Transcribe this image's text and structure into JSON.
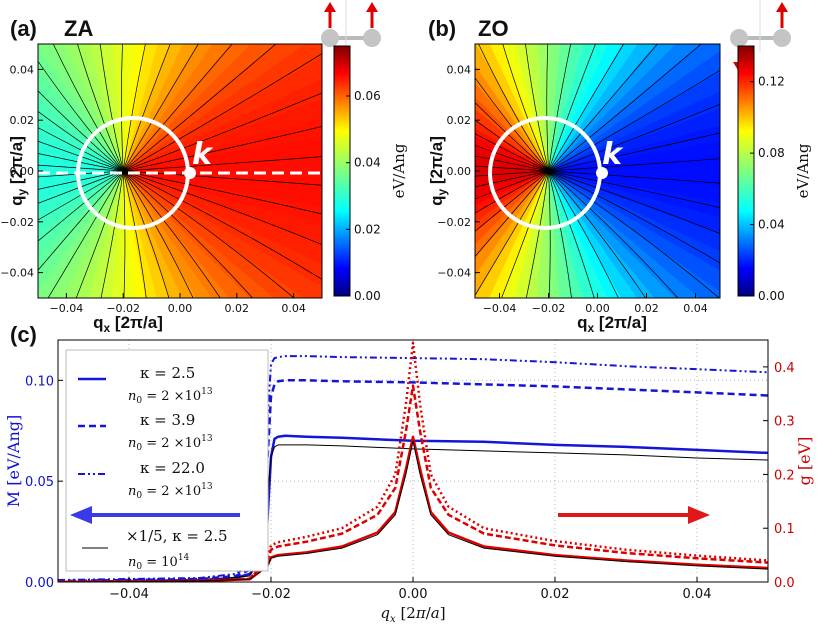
{
  "chart_data": [
    {
      "panel": "(a)",
      "type": "heatmap",
      "title": "ZA",
      "xlabel": "q_x [2π/a]",
      "ylabel": "q_y [2π/a]",
      "xlim": [
        -0.05,
        0.05
      ],
      "ylim": [
        -0.05,
        0.05
      ],
      "xticks": [
        "−0.04",
        "−0.02",
        "0.00",
        "0.02",
        "0.04"
      ],
      "yticks": [
        "0.04",
        "0.02",
        "0.00",
        "−0.02",
        "−0.04"
      ],
      "colorbar": {
        "label": "eV/Ang",
        "range": [
          0.0,
          0.075
        ],
        "ticks": [
          "0.06",
          "0.04",
          "0.02",
          "0.00"
        ]
      },
      "annotation": "k",
      "singularity": [
        -0.02,
        0.0
      ],
      "marker_point": [
        0.0,
        0.0
      ]
    },
    {
      "panel": "(b)",
      "type": "heatmap",
      "title": "ZO",
      "xlabel": "q_x [2π/a]",
      "ylabel": "q_y [2π/a]",
      "xlim": [
        -0.05,
        0.05
      ],
      "ylim": [
        -0.05,
        0.05
      ],
      "xticks": [
        "−0.04",
        "−0.02",
        "0.00",
        "0.02",
        "0.04"
      ],
      "yticks": [
        "0.04",
        "0.02",
        "0.00",
        "−0.02",
        "−0.04"
      ],
      "colorbar": {
        "label": "eV/Ang",
        "range": [
          0.0,
          0.14
        ],
        "ticks": [
          "0.12",
          "0.08",
          "0.04",
          "0.00"
        ]
      },
      "annotation": "k",
      "singularity": [
        -0.02,
        0.0
      ],
      "marker_point": [
        0.0,
        0.0
      ]
    },
    {
      "panel": "(c)",
      "type": "line",
      "xlabel": "q_x  [2π/a]",
      "ylabel_left": "M [eV/Ang]",
      "ylabel_right": "g [eV]",
      "xlim": [
        -0.05,
        0.05
      ],
      "ylim_left": [
        0.0,
        0.12
      ],
      "ylim_right": [
        0.0,
        0.45
      ],
      "xticks": [
        "−0.04",
        "−0.02",
        "0.00",
        "0.02",
        "0.04"
      ],
      "yticks_left": [
        "0.10",
        "0.05",
        "0.00"
      ],
      "yticks_right": [
        "0.4",
        "0.3",
        "0.2",
        "0.1",
        "0.0"
      ],
      "legend": [
        {
          "line1": "κ = 2.5",
          "line2_base": "n",
          "line2_sub": "0",
          "line2_mid": " = 2 ×10",
          "line2_sup": "13",
          "style": "solid"
        },
        {
          "line1": "κ = 3.9",
          "line2_base": "n",
          "line2_sub": "0",
          "line2_mid": " = 2 ×10",
          "line2_sup": "13",
          "style": "dashed"
        },
        {
          "line1": "κ = 22.0",
          "line2_base": "n",
          "line2_sub": "0",
          "line2_mid": " = 2 ×10",
          "line2_sup": "13",
          "style": "dashdotdot"
        },
        {
          "line1": "×1/5, κ = 2.5",
          "line2_base": "n",
          "line2_sub": "0",
          "line2_mid": " = 10",
          "line2_sup": "14",
          "style": "solid-black"
        }
      ],
      "series": [
        {
          "name": "M κ=2.5",
          "axis": "left",
          "color": "#1515d8",
          "dash": "",
          "width": 2.5,
          "x": [
            -0.05,
            -0.04,
            -0.03,
            -0.025,
            -0.023,
            -0.0215,
            -0.0205,
            -0.02,
            -0.0195,
            -0.019,
            -0.018,
            -0.015,
            -0.01,
            0.0,
            0.01,
            0.02,
            0.03,
            0.04,
            0.05
          ],
          "y": [
            0.0,
            0.0005,
            0.001,
            0.002,
            0.004,
            0.01,
            0.03,
            0.062,
            0.071,
            0.072,
            0.0725,
            0.072,
            0.0715,
            0.07,
            0.0695,
            0.068,
            0.067,
            0.0655,
            0.064
          ]
        },
        {
          "name": "M κ=3.9",
          "axis": "left",
          "color": "#1515d8",
          "dash": "7,4",
          "width": 2.5,
          "x": [
            -0.05,
            -0.04,
            -0.03,
            -0.025,
            -0.023,
            -0.0215,
            -0.0205,
            -0.02,
            -0.0195,
            -0.019,
            -0.018,
            -0.015,
            -0.01,
            0.0,
            0.01,
            0.02,
            0.03,
            0.04,
            0.05
          ],
          "y": [
            0.0005,
            0.001,
            0.0015,
            0.003,
            0.006,
            0.02,
            0.06,
            0.092,
            0.098,
            0.0995,
            0.1,
            0.1,
            0.0995,
            0.099,
            0.098,
            0.097,
            0.0955,
            0.094,
            0.0925
          ]
        },
        {
          "name": "M κ=22.0",
          "axis": "left",
          "color": "#1515d8",
          "dash": "7,3,2,3,2,3",
          "width": 2,
          "x": [
            -0.05,
            -0.04,
            -0.03,
            -0.025,
            -0.023,
            -0.0215,
            -0.0205,
            -0.02,
            -0.0195,
            -0.019,
            -0.018,
            -0.015,
            -0.01,
            0.0,
            0.01,
            0.02,
            0.03,
            0.04,
            0.05
          ],
          "y": [
            0.001,
            0.0015,
            0.002,
            0.004,
            0.008,
            0.03,
            0.08,
            0.108,
            0.111,
            0.1115,
            0.112,
            0.112,
            0.1115,
            0.111,
            0.1105,
            0.109,
            0.107,
            0.1055,
            0.104
          ]
        },
        {
          "name": "M ×1/5 κ=2.5",
          "axis": "left",
          "color": "#000000",
          "dash": "",
          "width": 1,
          "x": [
            -0.05,
            -0.03,
            -0.023,
            -0.021,
            -0.0205,
            -0.02,
            -0.0195,
            -0.019,
            -0.015,
            -0.01,
            0.0,
            0.01,
            0.02,
            0.03,
            0.04,
            0.05
          ],
          "y": [
            0.0,
            0.0005,
            0.003,
            0.015,
            0.04,
            0.062,
            0.067,
            0.068,
            0.068,
            0.0675,
            0.066,
            0.065,
            0.064,
            0.063,
            0.0615,
            0.0605
          ]
        },
        {
          "name": "g κ=2.5",
          "axis": "right",
          "color": "#dd0000",
          "dash": "",
          "width": 2.5,
          "x": [
            -0.05,
            -0.03,
            -0.023,
            -0.0205,
            -0.02,
            -0.0195,
            -0.019,
            -0.015,
            -0.01,
            -0.005,
            -0.0025,
            -0.001,
            0.0,
            0.001,
            0.0025,
            0.005,
            0.01,
            0.02,
            0.03,
            0.04,
            0.05
          ],
          "y": [
            0.0,
            0.002,
            0.005,
            0.03,
            0.046,
            0.048,
            0.05,
            0.055,
            0.066,
            0.092,
            0.13,
            0.21,
            0.27,
            0.21,
            0.13,
            0.092,
            0.066,
            0.05,
            0.04,
            0.032,
            0.026
          ]
        },
        {
          "name": "g κ=3.9",
          "axis": "right",
          "color": "#dd0000",
          "dash": "6,3",
          "width": 2.5,
          "x": [
            -0.05,
            -0.03,
            -0.023,
            -0.0205,
            -0.02,
            -0.0195,
            -0.019,
            -0.015,
            -0.01,
            -0.005,
            -0.0025,
            -0.001,
            0.0,
            0.001,
            0.0025,
            0.005,
            0.01,
            0.02,
            0.03,
            0.04,
            0.05
          ],
          "y": [
            0.0,
            0.002,
            0.006,
            0.04,
            0.06,
            0.063,
            0.066,
            0.075,
            0.09,
            0.125,
            0.175,
            0.28,
            0.365,
            0.28,
            0.175,
            0.125,
            0.09,
            0.068,
            0.054,
            0.044,
            0.036
          ]
        },
        {
          "name": "g κ=22.0",
          "axis": "right",
          "color": "#dd0000",
          "dash": "2,3",
          "width": 2.5,
          "x": [
            -0.05,
            -0.03,
            -0.023,
            -0.0205,
            -0.02,
            -0.0195,
            -0.019,
            -0.015,
            -0.01,
            -0.005,
            -0.0025,
            -0.001,
            0.0,
            0.001,
            0.0025,
            0.005,
            0.01,
            0.02,
            0.03,
            0.04,
            0.05
          ],
          "y": [
            0.0,
            0.002,
            0.006,
            0.045,
            0.068,
            0.071,
            0.074,
            0.084,
            0.1,
            0.14,
            0.2,
            0.33,
            0.445,
            0.33,
            0.2,
            0.14,
            0.1,
            0.076,
            0.06,
            0.049,
            0.04
          ]
        },
        {
          "name": "g ×1/5 κ=2.5",
          "axis": "right",
          "color": "#000000",
          "dash": "",
          "width": 1,
          "x": [
            -0.05,
            -0.03,
            -0.023,
            -0.0205,
            -0.02,
            -0.0195,
            -0.019,
            -0.015,
            -0.01,
            -0.005,
            -0.0025,
            -0.001,
            0.0,
            0.001,
            0.0025,
            0.005,
            0.01,
            0.02,
            0.03,
            0.04,
            0.05
          ],
          "y": [
            0.0,
            0.002,
            0.005,
            0.028,
            0.044,
            0.046,
            0.048,
            0.053,
            0.063,
            0.088,
            0.125,
            0.2,
            0.262,
            0.2,
            0.125,
            0.088,
            0.063,
            0.048,
            0.038,
            0.03,
            0.024
          ]
        }
      ],
      "colors": {
        "left_axis": "#1010d0",
        "right_axis": "#d00000",
        "arrow_left": "#3a3ae8",
        "arrow_right": "#e01818"
      }
    }
  ]
}
